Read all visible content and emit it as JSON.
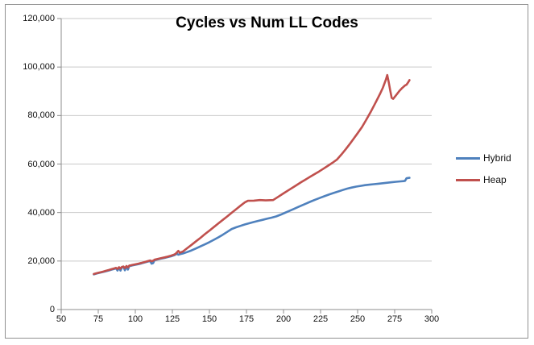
{
  "chart_data": {
    "type": "line",
    "title": "Cycles vs Num LL Codes",
    "xlabel": "",
    "ylabel": "",
    "xlim": [
      50,
      300
    ],
    "ylim": [
      0,
      120000
    ],
    "grid": "horizontal",
    "legend_position": "right",
    "x_ticks": [
      50,
      75,
      100,
      125,
      150,
      175,
      200,
      225,
      250,
      275,
      300
    ],
    "x_tick_labels": [
      "50",
      "75",
      "100",
      "125",
      "150",
      "175",
      "200",
      "225",
      "250",
      "275",
      "300"
    ],
    "y_ticks": [
      0,
      20000,
      40000,
      60000,
      80000,
      100000,
      120000
    ],
    "y_tick_labels": [
      "0",
      "20,000",
      "40,000",
      "60,000",
      "80,000",
      "100,000",
      "120,000"
    ],
    "series": [
      {
        "name": "Hybrid",
        "color": "#4F81BD",
        "points": [
          [
            72,
            14500
          ],
          [
            74,
            14850
          ],
          [
            76,
            15150
          ],
          [
            78,
            15450
          ],
          [
            80,
            15750
          ],
          [
            82,
            16100
          ],
          [
            84,
            16450
          ],
          [
            86,
            16800
          ],
          [
            87,
            17000
          ],
          [
            88,
            16100
          ],
          [
            89,
            17250
          ],
          [
            90,
            16050
          ],
          [
            91,
            17400
          ],
          [
            92,
            17550
          ],
          [
            93,
            16200
          ],
          [
            94,
            17750
          ],
          [
            95,
            16500
          ],
          [
            96,
            17950
          ],
          [
            97,
            18050
          ],
          [
            98,
            18200
          ],
          [
            100,
            18450
          ],
          [
            102,
            18700
          ],
          [
            104,
            19000
          ],
          [
            106,
            19350
          ],
          [
            108,
            19700
          ],
          [
            110,
            20050
          ],
          [
            111,
            18900
          ],
          [
            112,
            19150
          ],
          [
            113,
            20350
          ],
          [
            115,
            20650
          ],
          [
            117,
            20950
          ],
          [
            120,
            21350
          ],
          [
            122,
            21650
          ],
          [
            124,
            21950
          ],
          [
            126,
            22350
          ],
          [
            127,
            22650
          ],
          [
            128,
            23150
          ],
          [
            129,
            22600
          ],
          [
            130,
            22800
          ],
          [
            132,
            23100
          ],
          [
            135,
            23700
          ],
          [
            138,
            24400
          ],
          [
            141,
            25200
          ],
          [
            144,
            26050
          ],
          [
            147,
            26900
          ],
          [
            150,
            27800
          ],
          [
            153,
            28750
          ],
          [
            156,
            29750
          ],
          [
            159,
            30850
          ],
          [
            162,
            32000
          ],
          [
            165,
            33200
          ],
          [
            168,
            33900
          ],
          [
            171,
            34500
          ],
          [
            174,
            35100
          ],
          [
            177,
            35600
          ],
          [
            180,
            36100
          ],
          [
            183,
            36550
          ],
          [
            186,
            37000
          ],
          [
            189,
            37450
          ],
          [
            192,
            37900
          ],
          [
            195,
            38400
          ],
          [
            198,
            39100
          ],
          [
            201,
            39900
          ],
          [
            204,
            40700
          ],
          [
            207,
            41500
          ],
          [
            210,
            42300
          ],
          [
            213,
            43100
          ],
          [
            216,
            43900
          ],
          [
            219,
            44700
          ],
          [
            222,
            45450
          ],
          [
            225,
            46150
          ],
          [
            228,
            46850
          ],
          [
            231,
            47500
          ],
          [
            234,
            48100
          ],
          [
            237,
            48700
          ],
          [
            240,
            49300
          ],
          [
            243,
            49850
          ],
          [
            246,
            50300
          ],
          [
            249,
            50700
          ],
          [
            252,
            51000
          ],
          [
            255,
            51300
          ],
          [
            258,
            51500
          ],
          [
            261,
            51700
          ],
          [
            264,
            51900
          ],
          [
            267,
            52100
          ],
          [
            270,
            52300
          ],
          [
            273,
            52500
          ],
          [
            276,
            52700
          ],
          [
            279,
            52850
          ],
          [
            281,
            52950
          ],
          [
            282,
            53100
          ],
          [
            283,
            54100
          ],
          [
            284,
            54250
          ],
          [
            285,
            54300
          ]
        ]
      },
      {
        "name": "Heap",
        "color": "#C0504D",
        "points": [
          [
            72,
            14650
          ],
          [
            74,
            15000
          ],
          [
            76,
            15300
          ],
          [
            78,
            15600
          ],
          [
            80,
            15950
          ],
          [
            82,
            16300
          ],
          [
            84,
            16650
          ],
          [
            86,
            17000
          ],
          [
            87,
            17200
          ],
          [
            88,
            16750
          ],
          [
            89,
            17450
          ],
          [
            90,
            16900
          ],
          [
            91,
            17600
          ],
          [
            92,
            17750
          ],
          [
            93,
            17100
          ],
          [
            94,
            17950
          ],
          [
            95,
            17400
          ],
          [
            96,
            18150
          ],
          [
            97,
            18250
          ],
          [
            98,
            18400
          ],
          [
            100,
            18650
          ],
          [
            102,
            18900
          ],
          [
            104,
            19200
          ],
          [
            106,
            19550
          ],
          [
            108,
            19900
          ],
          [
            110,
            20250
          ],
          [
            111,
            19900
          ],
          [
            112,
            20150
          ],
          [
            113,
            20550
          ],
          [
            115,
            20850
          ],
          [
            117,
            21150
          ],
          [
            120,
            21550
          ],
          [
            122,
            21850
          ],
          [
            124,
            22200
          ],
          [
            126,
            22600
          ],
          [
            127,
            22900
          ],
          [
            128,
            23500
          ],
          [
            129,
            24200
          ],
          [
            130,
            23400
          ],
          [
            132,
            23900
          ],
          [
            135,
            25300
          ],
          [
            138,
            26700
          ],
          [
            141,
            28150
          ],
          [
            144,
            29600
          ],
          [
            147,
            31100
          ],
          [
            150,
            32550
          ],
          [
            153,
            34000
          ],
          [
            156,
            35500
          ],
          [
            159,
            36950
          ],
          [
            162,
            38400
          ],
          [
            165,
            39900
          ],
          [
            168,
            41350
          ],
          [
            171,
            42800
          ],
          [
            174,
            44250
          ],
          [
            176,
            44850
          ],
          [
            180,
            44900
          ],
          [
            184,
            45150
          ],
          [
            188,
            45000
          ],
          [
            193,
            45150
          ],
          [
            196,
            46300
          ],
          [
            200,
            47900
          ],
          [
            204,
            49450
          ],
          [
            208,
            51000
          ],
          [
            212,
            52550
          ],
          [
            215,
            53650
          ],
          [
            218,
            54750
          ],
          [
            221,
            55850
          ],
          [
            224,
            56950
          ],
          [
            227,
            58100
          ],
          [
            230,
            59300
          ],
          [
            233,
            60500
          ],
          [
            236,
            61800
          ],
          [
            239,
            63900
          ],
          [
            242,
            66100
          ],
          [
            245,
            68500
          ],
          [
            248,
            71000
          ],
          [
            250,
            72700
          ],
          [
            253,
            75300
          ],
          [
            256,
            78400
          ],
          [
            259,
            81700
          ],
          [
            262,
            85200
          ],
          [
            265,
            88800
          ],
          [
            267,
            91400
          ],
          [
            269,
            94700
          ],
          [
            270,
            96700
          ],
          [
            271,
            93800
          ],
          [
            272,
            90300
          ],
          [
            273,
            87300
          ],
          [
            274,
            86900
          ],
          [
            276,
            88400
          ],
          [
            278,
            90000
          ],
          [
            280,
            91300
          ],
          [
            282,
            92400
          ],
          [
            283,
            92700
          ],
          [
            284,
            93600
          ],
          [
            285,
            94600
          ]
        ]
      }
    ]
  },
  "colors": {
    "background": "#FFFFFF",
    "border": "#919191",
    "gridline": "#C9C9C9",
    "axis": "#8C8C8C",
    "text": "#111111",
    "hybrid_line": "#4F81BD",
    "heap_line": "#C0504D"
  }
}
